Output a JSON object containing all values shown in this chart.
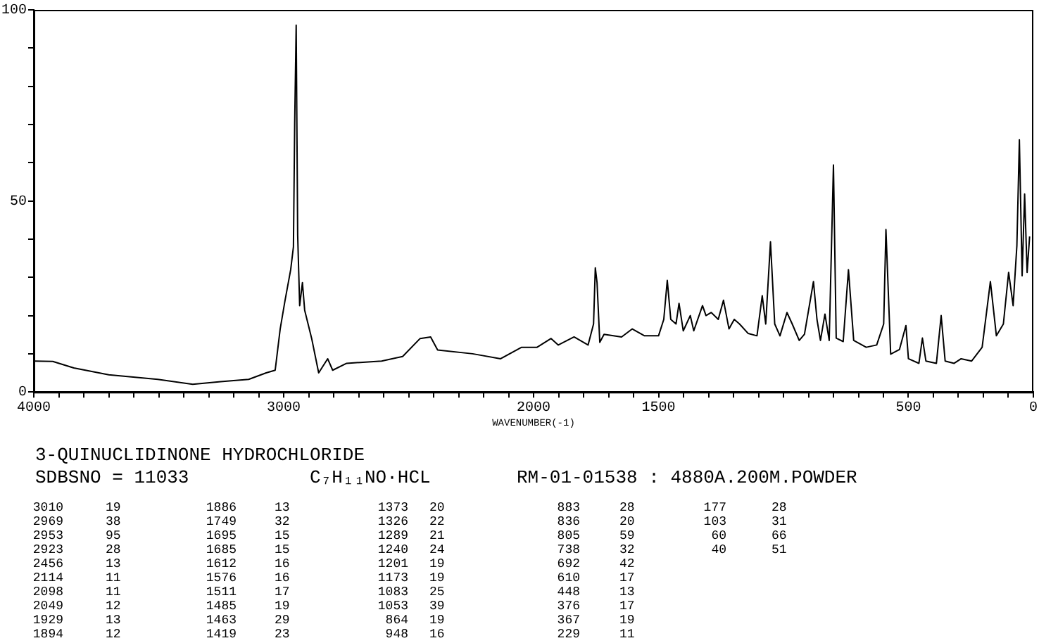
{
  "chart_data": {
    "type": "line",
    "title": "3-QUINUCLIDINONE HYDROCHLORIDE",
    "subtitle": "SDBSNO = 11033",
    "xlabel": "WAVENUMBER(-1)",
    "xlim": [
      4000,
      0
    ],
    "xticks": [
      4000,
      {
        "value": 3900,
        "label": null
      },
      {
        "value": 3800,
        "label": null
      },
      {
        "value": 3700,
        "label": null
      },
      {
        "value": 3600,
        "label": null
      },
      {
        "value": 3500,
        "label": null
      },
      {
        "value": 3400,
        "label": null
      },
      {
        "value": 3300,
        "label": null
      },
      {
        "value": 3200,
        "label": null
      },
      {
        "value": 3100,
        "label": null
      },
      3000,
      {
        "value": 2900,
        "label": null
      },
      {
        "value": 2800,
        "label": null
      },
      {
        "value": 2700,
        "label": null
      },
      {
        "value": 2600,
        "label": null
      },
      {
        "value": 2500,
        "label": null
      },
      {
        "value": 2400,
        "label": null
      },
      {
        "value": 2300,
        "label": null
      },
      {
        "value": 2200,
        "label": null
      },
      {
        "value": 2100,
        "label": null
      },
      2000,
      {
        "value": 1900,
        "label": null
      },
      {
        "value": 1800,
        "label": null
      },
      {
        "value": 1700,
        "label": null
      },
      {
        "value": 1600,
        "label": null
      },
      1500,
      {
        "value": 1400,
        "label": null
      },
      {
        "value": 1300,
        "label": null
      },
      {
        "value": 1200,
        "label": null
      },
      {
        "value": 1100,
        "label": null
      },
      {
        "value": 1000,
        "label": null
      },
      {
        "value": 900,
        "label": null
      },
      {
        "value": 800,
        "label": null
      },
      {
        "value": 700,
        "label": null
      },
      {
        "value": 600,
        "label": null
      },
      500,
      {
        "value": 400,
        "label": null
      },
      {
        "value": 300,
        "label": null
      },
      {
        "value": 200,
        "label": null
      },
      {
        "value": 100,
        "label": null
      },
      0
    ],
    "ylim": [
      0,
      100
    ],
    "yticks": [
      0,
      {
        "value": 10,
        "label": null
      },
      {
        "value": 20,
        "label": null
      },
      {
        "value": 30,
        "label": null
      },
      {
        "value": 40,
        "label": null
      },
      50,
      {
        "value": 60,
        "label": null
      },
      {
        "value": 70,
        "label": null
      },
      {
        "value": 80,
        "label": null
      },
      {
        "value": 90,
        "label": null
      },
      100
    ],
    "grid": false,
    "legend": false,
    "marker": "none",
    "line_style": "solid",
    "series": [
      {
        "color": "#000000",
        "x": [
          4000,
          3924,
          3840,
          3700,
          3504,
          3364,
          3252,
          3140,
          3070,
          3034,
          3014,
          2995,
          2972,
          2961,
          2956,
          2950,
          2944,
          2936,
          2925,
          2916,
          2888,
          2860,
          2824,
          2804,
          2748,
          2608,
          2524,
          2454,
          2412,
          2384,
          2244,
          2132,
          2048,
          1986,
          1930,
          1901,
          1838,
          1782,
          1760,
          1753,
          1746,
          1735,
          1718,
          1648,
          1605,
          1556,
          1500,
          1479,
          1465,
          1451,
          1430,
          1418,
          1401,
          1373,
          1359,
          1324,
          1310,
          1289,
          1261,
          1240,
          1218,
          1197,
          1176,
          1141,
          1106,
          1085,
          1071,
          1052,
          1035,
          1014,
          986,
          965,
          937,
          916,
          880,
          866,
          852,
          834,
          817,
          800,
          789,
          761,
          740,
          719,
          669,
          627,
          599,
          590,
          571,
          536,
          510,
          500,
          458,
          444,
          430,
          388,
          369,
          353,
          317,
          289,
          247,
          205,
          184,
          172,
          148,
          120,
          99,
          81,
          66,
          56,
          45,
          35,
          25,
          15
        ],
        "values": [
          8.1,
          8,
          6.3,
          4.5,
          3.3,
          2,
          2.7,
          3.3,
          5,
          5.7,
          16.5,
          23.8,
          32,
          38,
          70,
          96,
          41,
          22.6,
          28.6,
          21.4,
          14,
          5,
          8.7,
          5.7,
          7.5,
          8.1,
          9.3,
          14,
          14.4,
          11,
          10,
          8.7,
          11.7,
          11.7,
          14,
          12.3,
          14.4,
          12.3,
          17.8,
          32.5,
          28.6,
          13,
          15.1,
          14.4,
          16.5,
          14.7,
          14.7,
          19,
          29.2,
          19,
          17.8,
          23.2,
          16,
          20,
          16,
          22.6,
          20,
          20.8,
          19,
          24,
          16.5,
          19,
          17.8,
          15.3,
          14.7,
          25.2,
          17.8,
          39.3,
          17.8,
          14.7,
          20.8,
          17.8,
          13.5,
          15.1,
          28.9,
          19,
          13.5,
          20.4,
          13.5,
          59.4,
          14.1,
          13.2,
          32,
          13.5,
          11.7,
          12.3,
          17.8,
          42.5,
          9.9,
          11.1,
          17.4,
          8.7,
          7.5,
          14.1,
          8.1,
          7.5,
          20,
          8.1,
          7.5,
          8.7,
          8.1,
          11.7,
          22.6,
          28.9,
          14.7,
          17.8,
          31.3,
          22.6,
          38.3,
          66,
          30.4,
          51.8,
          31.3,
          40.7
        ]
      }
    ],
    "annotations": [
      "C₇H₁₁NO·HCL",
      "RM-01-01538 : 4880A.200M.POWDER",
      "3010 19",
      "2969 38",
      "2953 95",
      "2923 28",
      "2456 13",
      "2114 11",
      "2098 11",
      "2049 12",
      "1929 13",
      "1894 12",
      "1886 13",
      "1749 32",
      "1695 15",
      "1685 15",
      "1612 16",
      "1576 16",
      "1511 17",
      "1485 19",
      "1463 29",
      "1419 23",
      "1373 20",
      "1326 22",
      "1289 21",
      "1240 24",
      "1201 19",
      "1173 19",
      "1083 25",
      "1053 39",
      "864 19",
      "948 16",
      "883 28",
      "836 20",
      "805 59",
      "738 32",
      "692 42",
      "610 17",
      "448 13",
      "376 17",
      "367 19",
      "229 11",
      "177 28",
      "103 31",
      "60 66",
      "40 51"
    ]
  }
}
